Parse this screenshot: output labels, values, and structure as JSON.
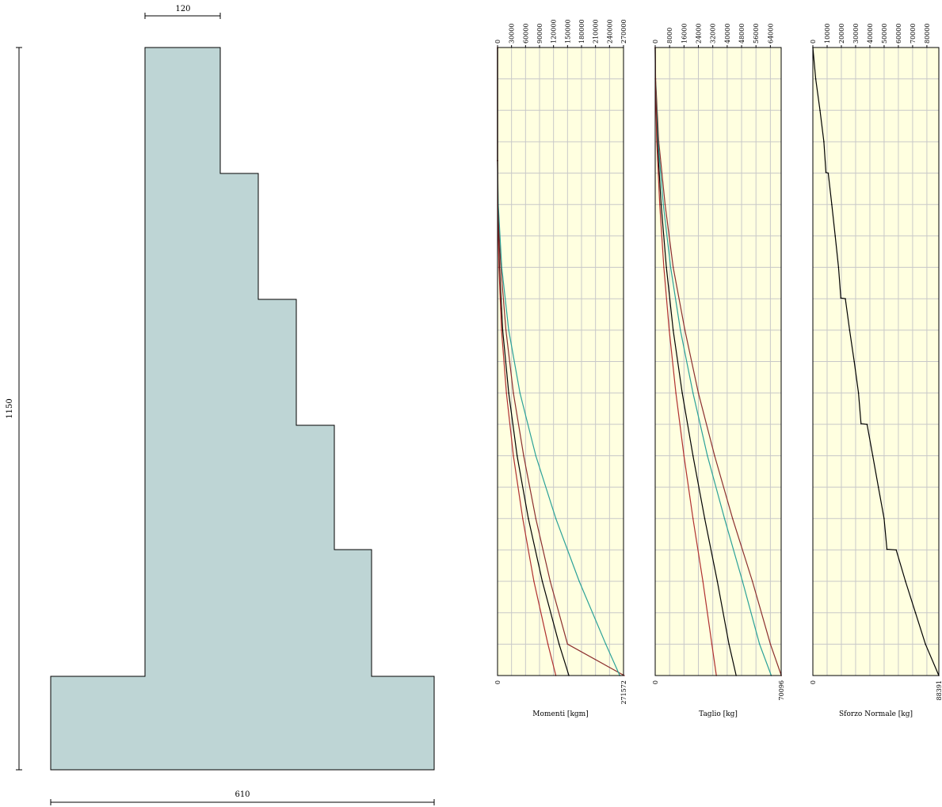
{
  "section": {
    "dimensions": {
      "top_width": "120",
      "height": "1150",
      "base_width": "610"
    },
    "fill_color": "#bed5d5",
    "stroke_color": "#000000"
  },
  "chart_data": [
    {
      "type": "line",
      "xlabel": "Momenti [kgm]",
      "orientation": "vertical-depth",
      "xlim": [
        0,
        270000
      ],
      "xticks": [
        "0",
        "30000",
        "60000",
        "90000",
        "120000",
        "150000",
        "180000",
        "210000",
        "240000",
        "270000"
      ],
      "min_label": "0",
      "max_label": "271572",
      "depth_fraction": [
        0,
        0.18,
        0.25,
        0.35,
        0.45,
        0.55,
        0.65,
        0.75,
        0.85,
        0.95,
        1.0
      ],
      "series": [
        {
          "color": "#8b2e2e",
          "values": [
            0,
            0,
            1000,
            7000,
            18000,
            34000,
            56000,
            82000,
            113000,
            150000,
            271572
          ]
        },
        {
          "color": "#2aa198",
          "values": [
            0,
            0,
            1500,
            9000,
            24000,
            48000,
            82000,
            125000,
            175000,
            232000,
            262000
          ]
        },
        {
          "color": "#000000",
          "values": [
            0,
            0,
            600,
            4000,
            11000,
            24000,
            42000,
            66000,
            96000,
            132000,
            153000
          ]
        },
        {
          "color": "#b03030",
          "values": [
            0,
            0,
            400,
            3000,
            8500,
            19000,
            34000,
            54000,
            78000,
            108000,
            125000
          ]
        }
      ],
      "grid": true,
      "background": "#ffffe0"
    },
    {
      "type": "line",
      "xlabel": "Taglio [kg]",
      "orientation": "vertical-depth",
      "xlim": [
        0,
        70000
      ],
      "xticks": [
        "0",
        "8000",
        "16000",
        "24000",
        "32000",
        "40000",
        "48000",
        "56000",
        "64000"
      ],
      "min_label": "0",
      "max_label": "70096",
      "depth_fraction": [
        0,
        0.05,
        0.15,
        0.25,
        0.35,
        0.45,
        0.55,
        0.65,
        0.75,
        0.85,
        0.95,
        1.0
      ],
      "series": [
        {
          "color": "#8b2e2e",
          "values": [
            0,
            200,
            2000,
            5500,
            10000,
            16500,
            24000,
            33000,
            43000,
            54000,
            64000,
            70096
          ]
        },
        {
          "color": "#2aa198",
          "values": [
            0,
            150,
            1600,
            4500,
            8600,
            14000,
            21000,
            29000,
            38500,
            48500,
            58000,
            64500
          ]
        },
        {
          "color": "#000000",
          "values": [
            0,
            100,
            1200,
            3300,
            6200,
            10000,
            15000,
            21000,
            27500,
            34500,
            41000,
            45000
          ]
        },
        {
          "color": "#b03030",
          "values": [
            0,
            80,
            900,
            2500,
            4800,
            7800,
            11500,
            16000,
            21000,
            26500,
            31500,
            34000
          ]
        }
      ],
      "grid": true,
      "background": "#ffffe0"
    },
    {
      "type": "line",
      "xlabel": "Sforzo Normale [kg]",
      "orientation": "vertical-depth",
      "xlim": [
        0,
        88391
      ],
      "xticks": [
        "0",
        "10000",
        "20000",
        "30000",
        "40000",
        "50000",
        "60000",
        "70000",
        "80000"
      ],
      "min_label": "0",
      "max_label": "88391",
      "depth_fraction": [
        0,
        0.05,
        0.1,
        0.15,
        0.199,
        0.2,
        0.25,
        0.3,
        0.35,
        0.399,
        0.4,
        0.45,
        0.5,
        0.55,
        0.599,
        0.6,
        0.65,
        0.7,
        0.75,
        0.799,
        0.8,
        0.85,
        0.9,
        0.95,
        1.0
      ],
      "series": [
        {
          "color": "#000000",
          "values": [
            0,
            2000,
            5000,
            7700,
            9200,
            10800,
            13300,
            15700,
            18000,
            19600,
            22800,
            25800,
            29000,
            32000,
            33800,
            38000,
            42000,
            46000,
            50000,
            52000,
            58500,
            65000,
            72000,
            79000,
            88391
          ]
        }
      ],
      "grid": true,
      "background": "#ffffe0"
    }
  ]
}
